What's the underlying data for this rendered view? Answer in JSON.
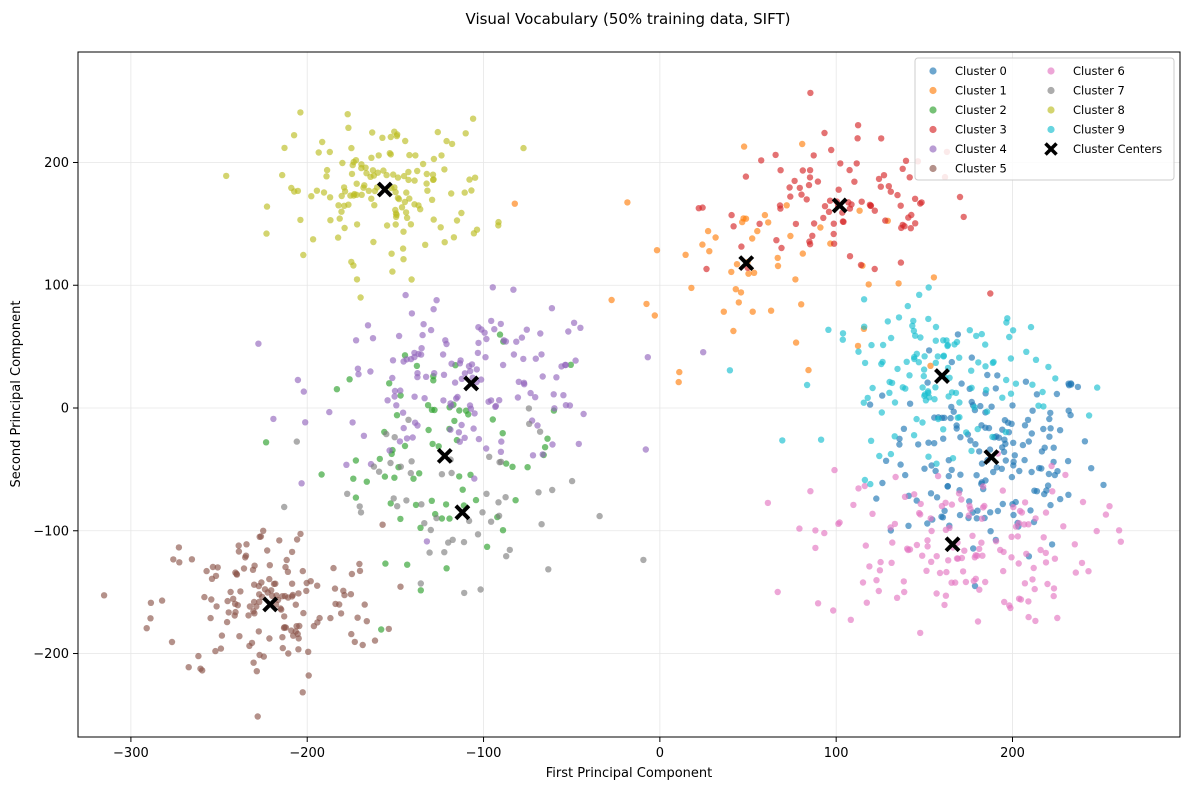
{
  "chart_data": {
    "type": "scatter",
    "title": "Visual Vocabulary (50% training data, SIFT)",
    "xlabel": "First Principal Component",
    "ylabel": "Second Principal Component",
    "xlim": [
      -330,
      295
    ],
    "ylim": [
      -268,
      290
    ],
    "xticks": [
      -300,
      -200,
      -100,
      0,
      100,
      200
    ],
    "xtick_labels": [
      "−300",
      "−200",
      "−100",
      "0",
      "100",
      "200"
    ],
    "yticks": [
      -200,
      -100,
      0,
      100,
      200
    ],
    "ytick_labels": [
      "−200",
      "−100",
      "0",
      "100",
      "200"
    ],
    "grid": true,
    "legend_position": "top-right",
    "legend_columns": 2,
    "series": [
      {
        "name": "Cluster 0",
        "color": "#1f77b4",
        "center": [
          188,
          -40
        ],
        "spread": [
          30,
          40
        ],
        "count": 170
      },
      {
        "name": "Cluster 1",
        "color": "#ff7f0e",
        "center": [
          50,
          118
        ],
        "spread": [
          38,
          42
        ],
        "count": 55
      },
      {
        "name": "Cluster 2",
        "color": "#2ca02c",
        "center": [
          -122,
          -38
        ],
        "spread": [
          35,
          42
        ],
        "count": 75
      },
      {
        "name": "Cluster 3",
        "color": "#d62728",
        "center": [
          102,
          165
        ],
        "spread": [
          38,
          28
        ],
        "count": 95
      },
      {
        "name": "Cluster 4",
        "color": "#9467bd",
        "center": [
          -108,
          20
        ],
        "spread": [
          42,
          32
        ],
        "count": 150
      },
      {
        "name": "Cluster 5",
        "color": "#8c564b",
        "center": [
          -222,
          -160
        ],
        "spread": [
          32,
          32
        ],
        "count": 150
      },
      {
        "name": "Cluster 6",
        "color": "#e377c2",
        "center": [
          166,
          -112
        ],
        "spread": [
          40,
          32
        ],
        "count": 150
      },
      {
        "name": "Cluster 7",
        "color": "#7f7f7f",
        "center": [
          -112,
          -86
        ],
        "spread": [
          45,
          40
        ],
        "count": 55
      },
      {
        "name": "Cluster 8",
        "color": "#bcbd22",
        "center": [
          -156,
          178
        ],
        "spread": [
          30,
          28
        ],
        "count": 150
      },
      {
        "name": "Cluster 9",
        "color": "#17becf",
        "center": [
          160,
          26
        ],
        "spread": [
          32,
          30
        ],
        "count": 130
      }
    ],
    "cluster_centers": {
      "name": "Cluster Centers",
      "color": "#000000",
      "marker": "x",
      "points": [
        [
          188,
          -40
        ],
        [
          49,
          118
        ],
        [
          -122,
          -39
        ],
        [
          102,
          165
        ],
        [
          -107,
          20
        ],
        [
          -221,
          -160
        ],
        [
          166,
          -111
        ],
        [
          -112,
          -85
        ],
        [
          -156,
          178
        ],
        [
          160,
          26
        ]
      ]
    }
  }
}
